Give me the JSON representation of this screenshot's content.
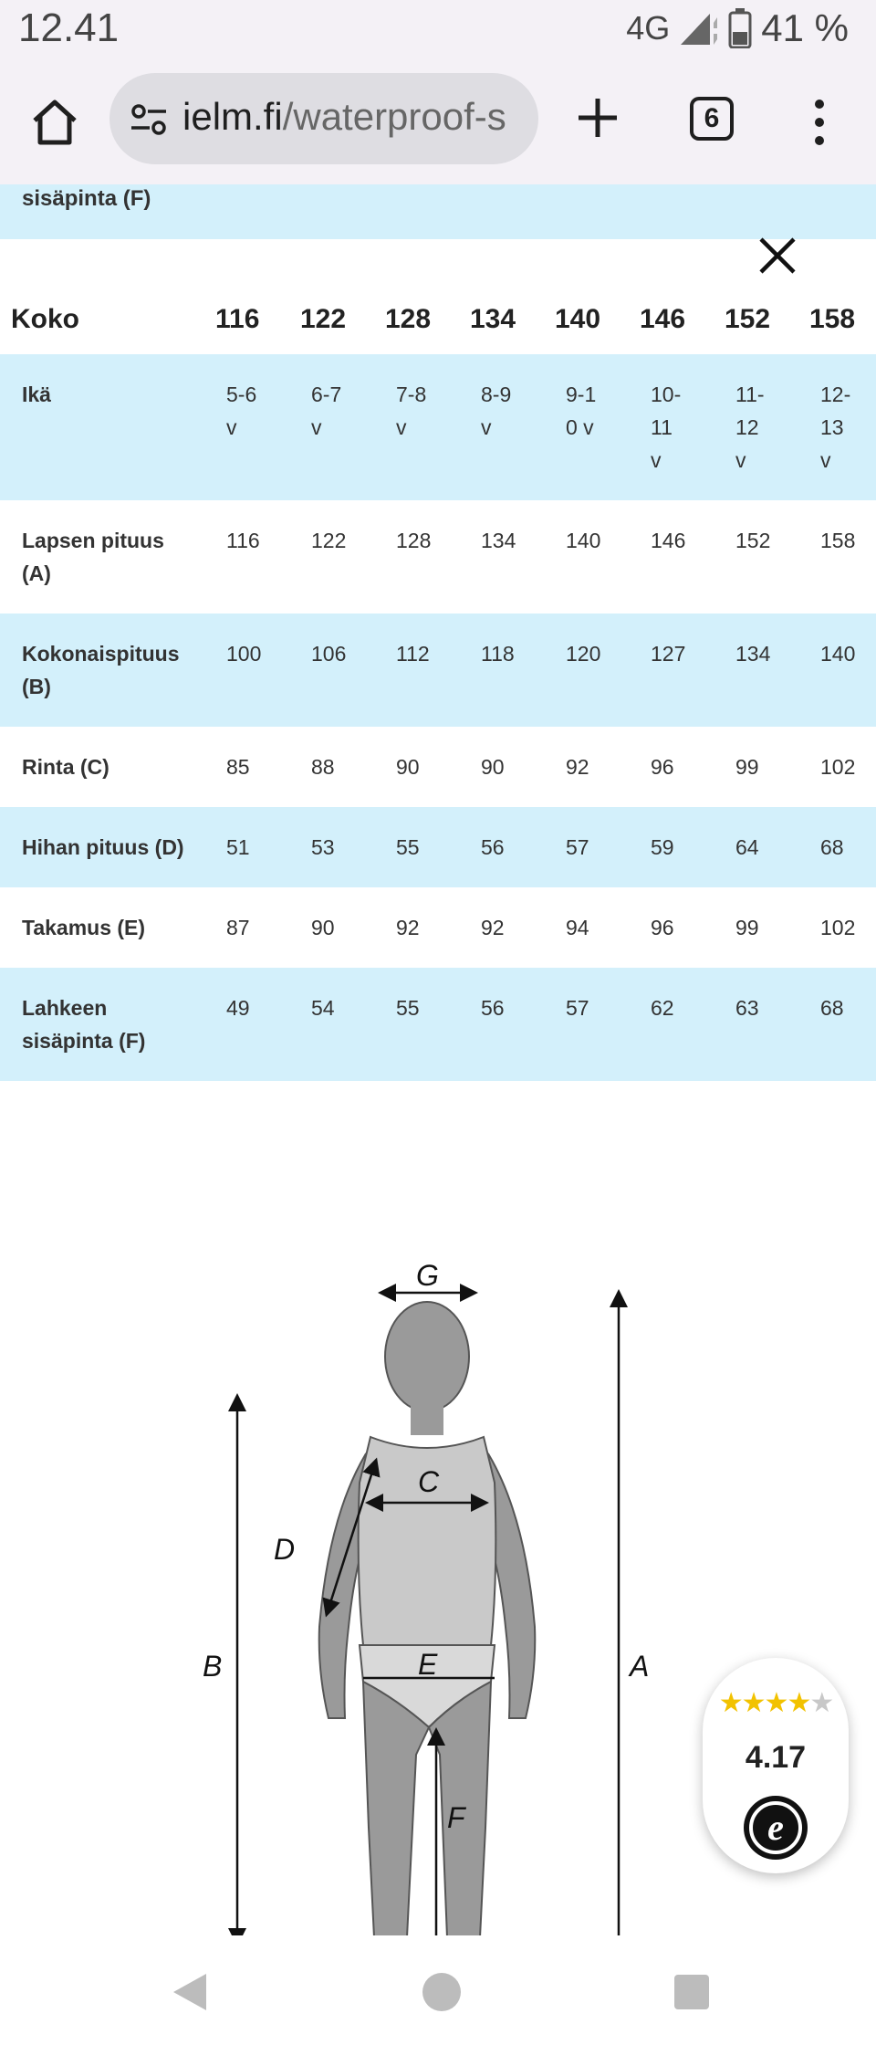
{
  "status_bar": {
    "time": "12.41",
    "network": "4G",
    "battery": "41 %"
  },
  "browser": {
    "url_domain": "ielm.fi",
    "url_path": "/waterproof-s",
    "tab_count": "6"
  },
  "partial_row_label": "sisäpinta (F)",
  "table": {
    "header_label": "Koko",
    "sizes": [
      "116",
      "122",
      "128",
      "134",
      "140",
      "146",
      "152",
      "158"
    ],
    "rows": [
      {
        "label": "Ikä",
        "values": [
          "5-6 v",
          "6-7 v",
          "7-8 v",
          "8-9 v",
          "9-10 v",
          "10-11 v",
          "11-12 v",
          "12-13 v"
        ]
      },
      {
        "label": "Lapsen pituus (A)",
        "values": [
          "116",
          "122",
          "128",
          "134",
          "140",
          "146",
          "152",
          "158"
        ]
      },
      {
        "label": "Kokonaispituus (B)",
        "values": [
          "100",
          "106",
          "112",
          "118",
          "120",
          "127",
          "134",
          "140"
        ]
      },
      {
        "label": "Rinta (C)",
        "values": [
          "85",
          "88",
          "90",
          "90",
          "92",
          "96",
          "99",
          "102"
        ]
      },
      {
        "label": "Hihan pituus (D)",
        "values": [
          "51",
          "53",
          "55",
          "56",
          "57",
          "59",
          "64",
          "68"
        ]
      },
      {
        "label": "Takamus (E)",
        "values": [
          "87",
          "90",
          "92",
          "92",
          "94",
          "96",
          "99",
          "102"
        ]
      },
      {
        "label": "Lahkeen sisäpinta (F)",
        "values": [
          "49",
          "54",
          "55",
          "56",
          "57",
          "62",
          "63",
          "68"
        ]
      }
    ]
  },
  "diagram": {
    "labels": {
      "g": "G",
      "a": "A",
      "b": "B",
      "c": "C",
      "d": "D",
      "e": "E",
      "f": "F"
    }
  },
  "rating": {
    "stars_filled": 4,
    "stars_total": 5,
    "value": "4.17",
    "logo_letter": "e"
  },
  "colors": {
    "row_blue": "#d3f0fb",
    "figure_gray": "#9a9a9a",
    "star_yellow": "#f2c200"
  }
}
